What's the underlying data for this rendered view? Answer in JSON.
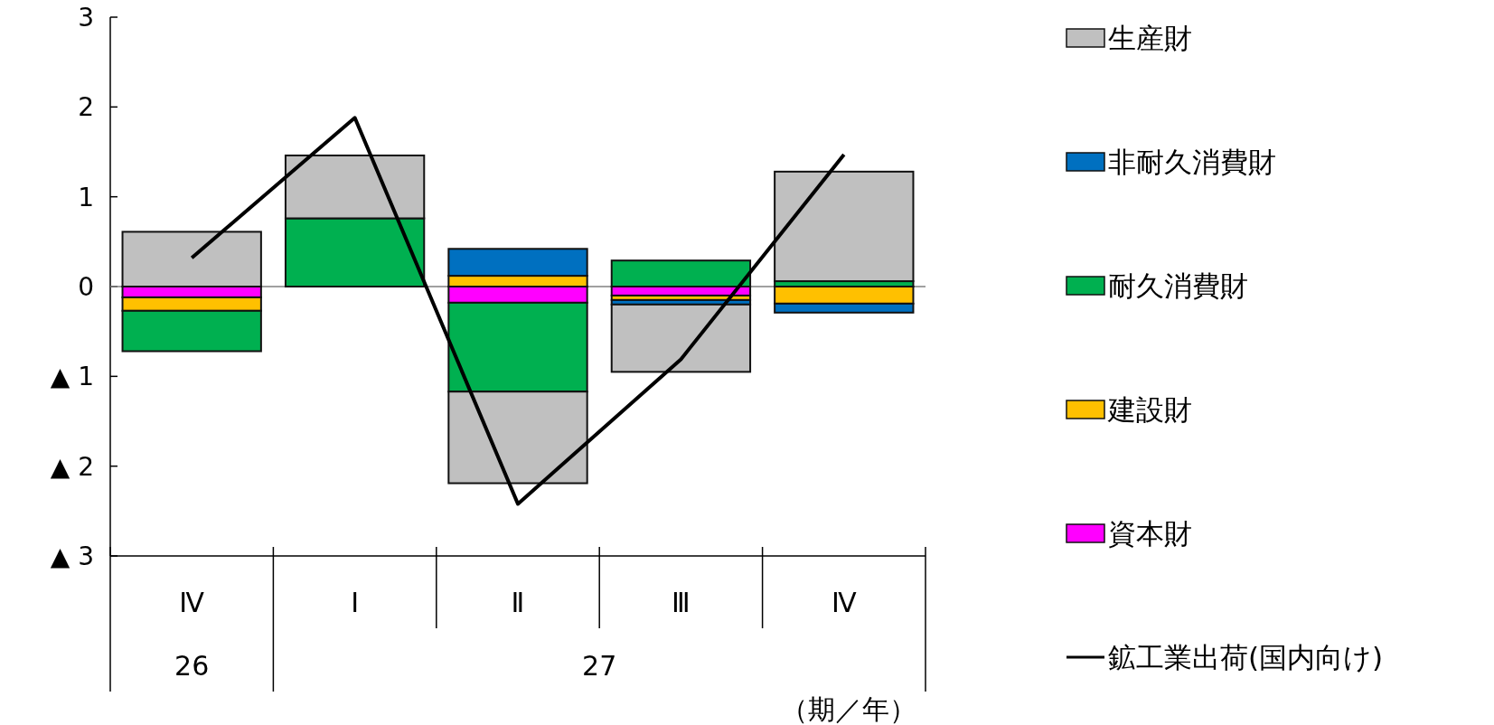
{
  "chart_data": {
    "type": "bar",
    "stacked": true,
    "xlabel": "（期／年）",
    "categories": [
      "Ⅳ",
      "Ⅰ",
      "Ⅱ",
      "Ⅲ",
      "Ⅳ"
    ],
    "series": [
      {
        "name": "資本財",
        "color": "#ff00ff",
        "values": [
          -0.12,
          0,
          -0.18,
          -0.1,
          0
        ]
      },
      {
        "name": "建設財",
        "color": "#ffc000",
        "values": [
          -0.15,
          0,
          0.12,
          -0.05,
          -0.19
        ]
      },
      {
        "name": "耐久消費財",
        "color": "#00b050",
        "values": [
          -0.45,
          0.76,
          -0.99,
          0.29,
          0.06
        ]
      },
      {
        "name": "非耐久消費財",
        "color": "#0070c0",
        "values": [
          0,
          0,
          0.3,
          -0.05,
          -0.1
        ]
      },
      {
        "name": "生産財",
        "color": "#c0c0c0",
        "values": [
          0.61,
          0.7,
          -1.02,
          -0.75,
          1.22
        ]
      },
      {
        "name": "鉱工業出荷(国内向け)",
        "type": "line",
        "color": "#000000",
        "values": [
          0.32,
          1.88,
          -2.42,
          -0.81,
          1.47
        ]
      }
    ],
    "ylim": [
      -3,
      3
    ],
    "yticks": [
      {
        "value": -3,
        "label": "▲ 3"
      },
      {
        "value": -2,
        "label": "▲ 2"
      },
      {
        "value": -1,
        "label": "▲ 1"
      },
      0,
      1,
      2,
      3
    ],
    "ref_lines": [
      {
        "axis": "y",
        "value": 0,
        "color": "#808080"
      }
    ],
    "legend": "right",
    "annotations": [
      "26",
      "27"
    ]
  }
}
